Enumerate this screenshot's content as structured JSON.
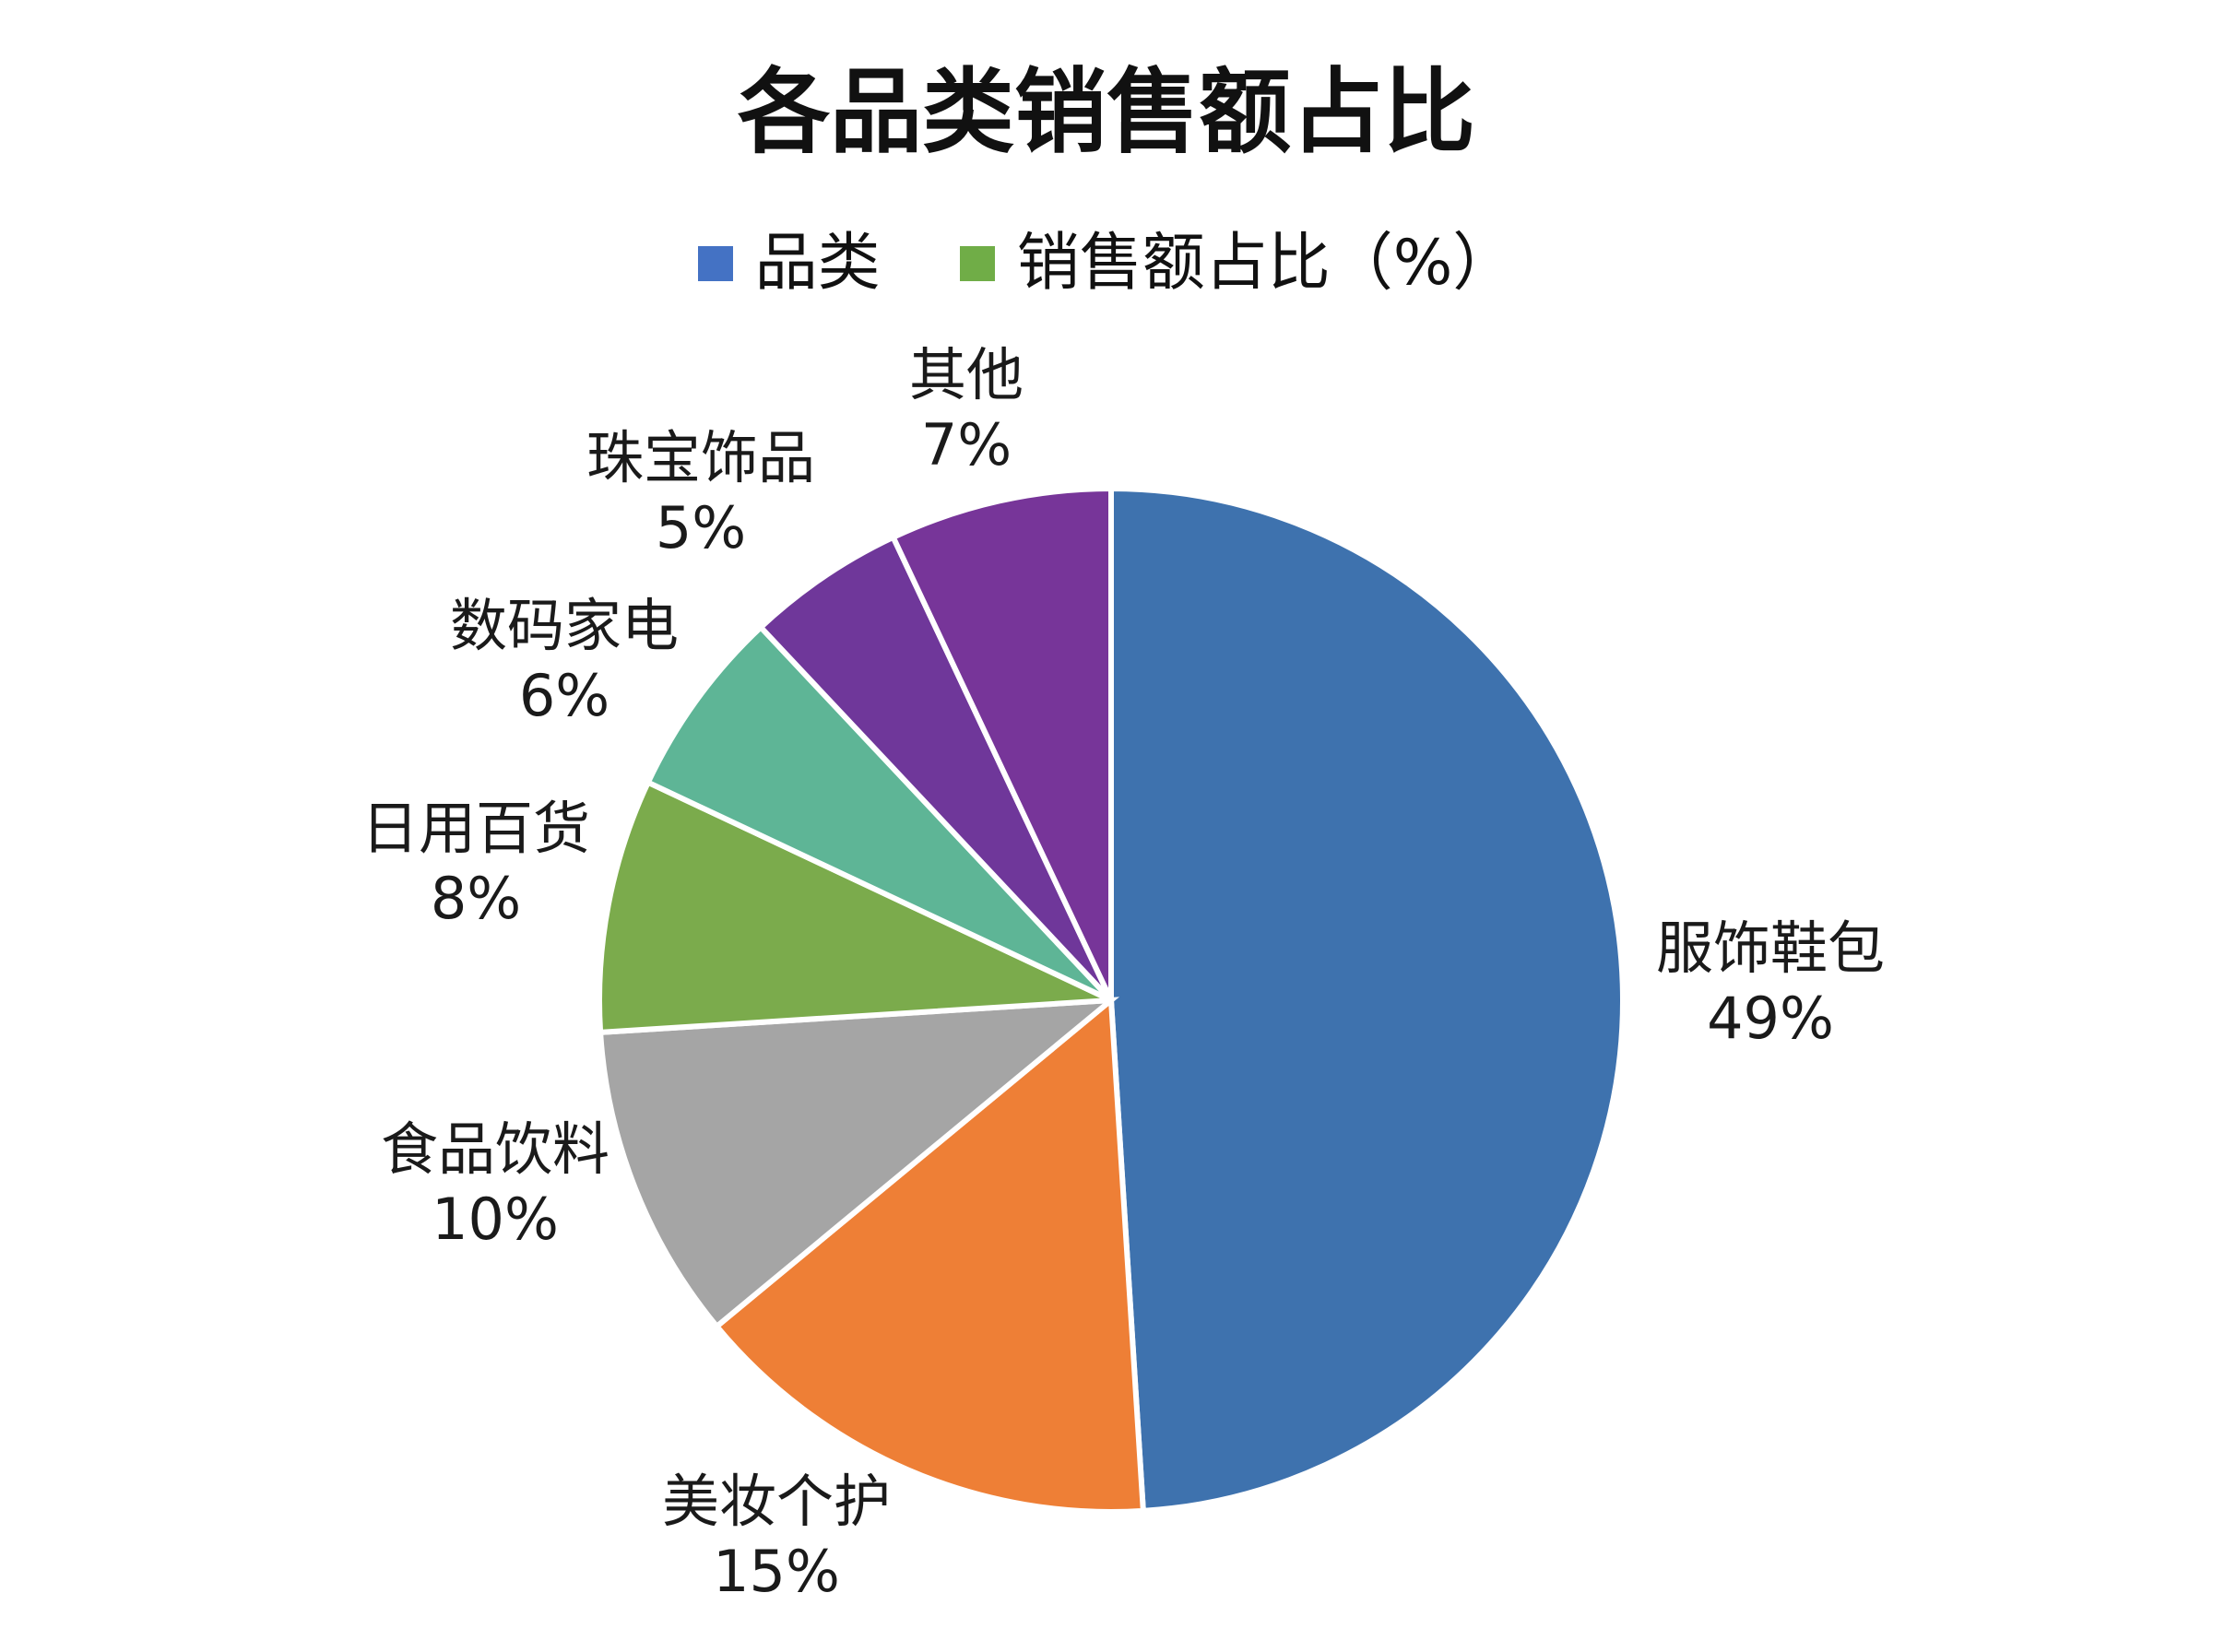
{
  "chart_data": {
    "type": "pie",
    "title": "各品类销售额占比",
    "legend": {
      "placement": "top-center",
      "entries": [
        {
          "label": "品类",
          "color": "#4472C4"
        },
        {
          "label": "销售额占比（%）",
          "color": "#70AD47"
        }
      ]
    },
    "slices": [
      {
        "category": "服饰鞋包",
        "value": 49,
        "label": "49%",
        "color": "#3E72AE"
      },
      {
        "category": "美妆个护",
        "value": 15,
        "label": "15%",
        "color": "#EE7F36"
      },
      {
        "category": "食品饮料",
        "value": 10,
        "label": "10%",
        "color": "#A5A5A5"
      },
      {
        "category": "日用百货",
        "value": 8,
        "label": "8%",
        "color": "#7BAB4C"
      },
      {
        "category": "数码家电",
        "value": 6,
        "label": "6%",
        "color": "#5EB596"
      },
      {
        "category": "珠宝饰品",
        "value": 5,
        "label": "5%",
        "color": "#6F379A"
      },
      {
        "category": "其他",
        "value": 7,
        "label": "7%",
        "color": "#773599"
      }
    ]
  }
}
